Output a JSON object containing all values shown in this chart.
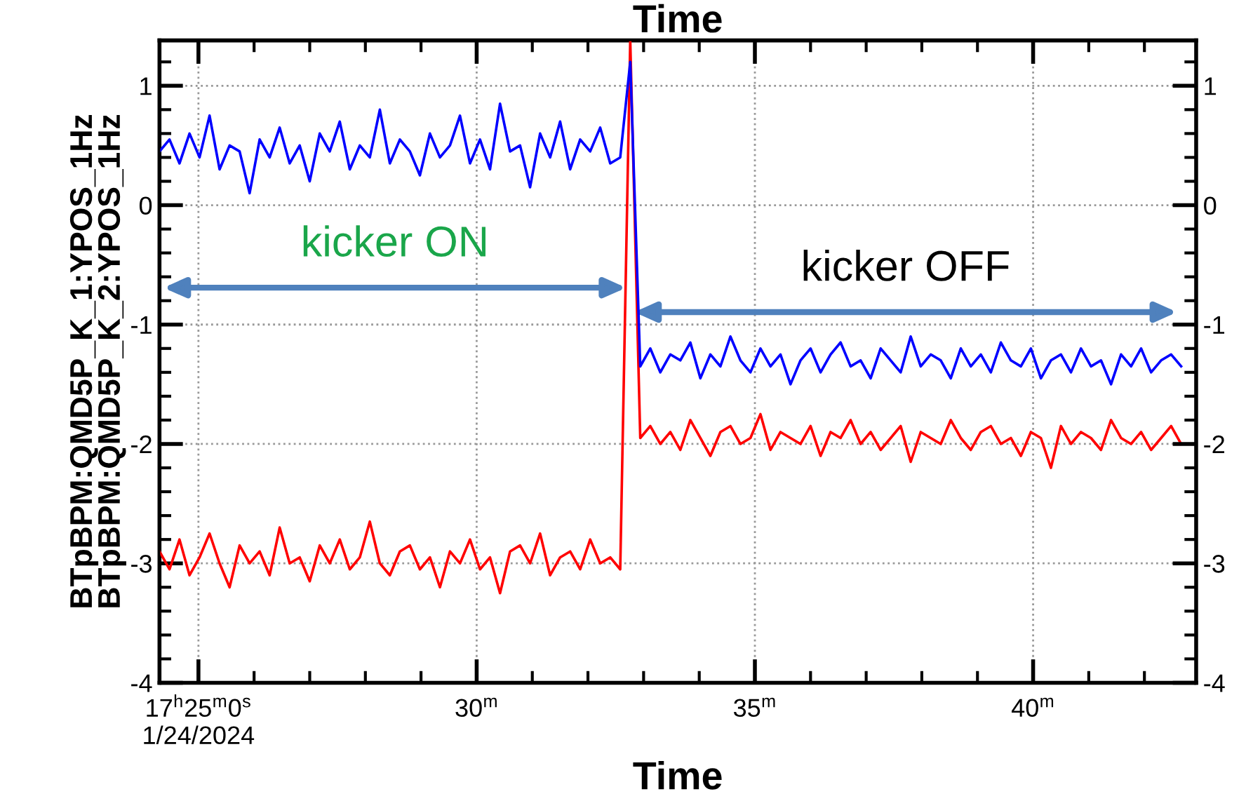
{
  "chart_data": {
    "type": "line",
    "title": "Time",
    "xlabel": "Time",
    "ylabel": "BTpBPM:QMD5P_K_1:YPOS_1Hz\nBTpBPM:QMD5P_K_2:YPOS_1Hz",
    "x": [
      24.3,
      24.48,
      24.66,
      24.84,
      25.02,
      25.2,
      25.38,
      25.56,
      25.74,
      25.92,
      26.1,
      26.28,
      26.46,
      26.64,
      26.82,
      27,
      27.18,
      27.36,
      27.54,
      27.72,
      27.9,
      28.08,
      28.26,
      28.44,
      28.62,
      28.8,
      28.98,
      29.16,
      29.34,
      29.52,
      29.7,
      29.88,
      30.06,
      30.24,
      30.42,
      30.6,
      30.78,
      30.96,
      31.14,
      31.32,
      31.5,
      31.68,
      31.86,
      32.04,
      32.22,
      32.4,
      32.58,
      32.76,
      32.94,
      33.12,
      33.3,
      33.48,
      33.66,
      33.84,
      34.02,
      34.2,
      34.38,
      34.56,
      34.74,
      34.92,
      35.1,
      35.28,
      35.46,
      35.64,
      35.82,
      36,
      36.18,
      36.36,
      36.54,
      36.72,
      36.9,
      37.08,
      37.26,
      37.44,
      37.62,
      37.8,
      37.98,
      38.16,
      38.34,
      38.52,
      38.7,
      38.88,
      39.06,
      39.24,
      39.42,
      39.6,
      39.78,
      39.96,
      40.14,
      40.32,
      40.5,
      40.68,
      40.86,
      41.04,
      41.22,
      41.4,
      41.58,
      41.76,
      41.94,
      42.12,
      42.3,
      42.48,
      42.66
    ],
    "series": [
      {
        "color": "#0000ff",
        "values": [
          0.45,
          0.55,
          0.35,
          0.6,
          0.4,
          0.75,
          0.3,
          0.5,
          0.45,
          0.1,
          0.55,
          0.4,
          0.65,
          0.35,
          0.5,
          0.2,
          0.6,
          0.45,
          0.7,
          0.3,
          0.5,
          0.4,
          0.8,
          0.35,
          0.55,
          0.45,
          0.25,
          0.6,
          0.4,
          0.5,
          0.75,
          0.35,
          0.55,
          0.3,
          0.85,
          0.45,
          0.5,
          0.15,
          0.6,
          0.4,
          0.7,
          0.3,
          0.55,
          0.45,
          0.65,
          0.35,
          0.4,
          1.2,
          -1.35,
          -1.2,
          -1.4,
          -1.25,
          -1.3,
          -1.15,
          -1.45,
          -1.25,
          -1.35,
          -1.1,
          -1.3,
          -1.4,
          -1.2,
          -1.35,
          -1.25,
          -1.5,
          -1.3,
          -1.2,
          -1.4,
          -1.25,
          -1.15,
          -1.35,
          -1.3,
          -1.45,
          -1.2,
          -1.3,
          -1.4,
          -1.1,
          -1.35,
          -1.25,
          -1.3,
          -1.45,
          -1.2,
          -1.35,
          -1.25,
          -1.4,
          -1.15,
          -1.3,
          -1.35,
          -1.2,
          -1.45,
          -1.3,
          -1.25,
          -1.4,
          -1.2,
          -1.35,
          -1.3,
          -1.5,
          -1.25,
          -1.35,
          -1.2,
          -1.4,
          -1.3,
          -1.25,
          -1.35
        ]
      },
      {
        "color": "#ff0000",
        "values": [
          -2.9,
          -3.05,
          -2.8,
          -3.1,
          -2.95,
          -2.75,
          -3.0,
          -3.2,
          -2.85,
          -3.0,
          -2.9,
          -3.1,
          -2.7,
          -3.0,
          -2.95,
          -3.15,
          -2.85,
          -3.0,
          -2.8,
          -3.05,
          -2.95,
          -2.65,
          -3.0,
          -3.1,
          -2.9,
          -2.85,
          -3.05,
          -2.95,
          -3.2,
          -2.9,
          -3.0,
          -2.8,
          -3.05,
          -2.95,
          -3.25,
          -2.9,
          -2.85,
          -3.0,
          -2.75,
          -3.1,
          -2.95,
          -2.9,
          -3.05,
          -2.8,
          -3.0,
          -2.95,
          -3.05,
          1.38,
          -1.95,
          -1.85,
          -2.0,
          -1.9,
          -2.05,
          -1.8,
          -1.95,
          -2.1,
          -1.9,
          -1.85,
          -2.0,
          -1.95,
          -1.75,
          -2.05,
          -1.9,
          -1.95,
          -2.0,
          -1.85,
          -2.1,
          -1.9,
          -1.95,
          -1.8,
          -2.0,
          -1.9,
          -2.05,
          -1.95,
          -1.85,
          -2.15,
          -1.9,
          -1.95,
          -2.0,
          -1.8,
          -1.95,
          -2.05,
          -1.9,
          -1.85,
          -2.0,
          -1.95,
          -2.1,
          -1.9,
          -1.95,
          -2.2,
          -1.85,
          -2.0,
          -1.9,
          -1.95,
          -2.05,
          -1.8,
          -1.95,
          -2.0,
          -1.9,
          -2.05,
          -1.95,
          -1.85,
          -2.0
        ]
      }
    ],
    "xlim": [
      24.3,
      42.93
    ],
    "xticks": [
      {
        "value": 25,
        "label": "17$^{h}$25$^{m}$0$^{s}$\n1/24/2024"
      },
      {
        "value": 30,
        "label": "30$^{m}$"
      },
      {
        "value": 35,
        "label": "35$^{m}$"
      },
      {
        "value": 40,
        "label": "40$^{m}$"
      }
    ],
    "ylim": [
      -4,
      1.38
    ],
    "yticks": [
      -4,
      -3,
      -2,
      -1,
      0,
      1
    ],
    "y2lim": [
      -4,
      1.38
    ],
    "y2ticks": [
      -4,
      -3,
      -2,
      -1,
      0,
      1
    ],
    "grid": true,
    "marker": "none",
    "line_style": "solid",
    "annotations": [
      "kicker ON",
      "kicker OFF"
    ]
  }
}
